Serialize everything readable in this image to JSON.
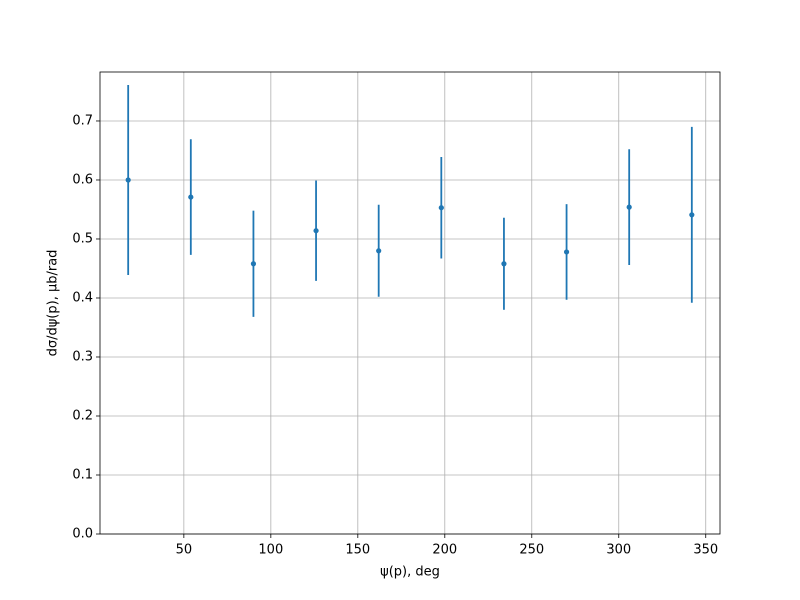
{
  "chart_data": {
    "type": "errorbar",
    "x_label": "ψ(p), deg",
    "y_label": "dσ/dψ(p), μb/rad",
    "x": [
      18,
      54,
      90,
      126,
      162,
      198,
      234,
      270,
      306,
      342
    ],
    "series": [
      {
        "color": "#1f77b4",
        "values": [
          0.6,
          0.571,
          0.458,
          0.514,
          0.48,
          0.553,
          0.458,
          0.478,
          0.554,
          0.541
        ],
        "errors": [
          0.161,
          0.098,
          0.09,
          0.085,
          0.078,
          0.086,
          0.078,
          0.081,
          0.098,
          0.149
        ]
      }
    ],
    "xlim": [
      1.8,
      358.2
    ],
    "ylim": [
      0,
      0.783
    ],
    "xticks": [
      50,
      100,
      150,
      200,
      250,
      300,
      350
    ],
    "yticks": [
      {
        "value": 0,
        "label": "0.0"
      },
      0.1,
      0.2,
      0.3,
      0.4,
      0.5,
      0.6,
      0.7
    ],
    "grid": true
  }
}
